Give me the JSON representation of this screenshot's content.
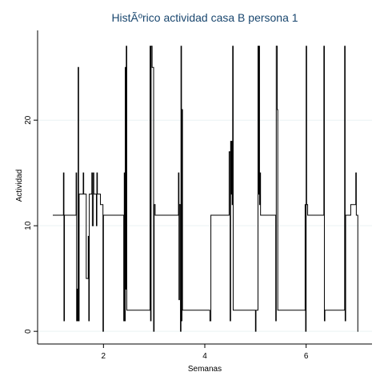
{
  "chart_data": {
    "type": "line",
    "title": "HistÃºrico actividad casa B persona 1",
    "xlabel": "Semanas",
    "ylabel": "Actividad",
    "xlim": [
      0.7,
      7.3
    ],
    "ylim": [
      -1.2,
      28.5
    ],
    "x_ticks": [
      2,
      4,
      6
    ],
    "x_tick_labels": [
      "2",
      "4",
      "6"
    ],
    "y_ticks": [
      0,
      10,
      20
    ],
    "y_tick_labels": [
      "0",
      "10",
      "20"
    ],
    "grid": "horizontal",
    "legend": "none",
    "series": [
      {
        "color": "#000000",
        "points": [
          [
            1.0,
            11
          ],
          [
            1.21,
            11
          ],
          [
            1.21,
            15
          ],
          [
            1.22,
            15
          ],
          [
            1.22,
            1
          ],
          [
            1.23,
            1
          ],
          [
            1.23,
            11
          ],
          [
            1.46,
            11
          ],
          [
            1.46,
            15
          ],
          [
            1.47,
            15
          ],
          [
            1.47,
            1
          ],
          [
            1.48,
            1
          ],
          [
            1.48,
            4
          ],
          [
            1.49,
            4
          ],
          [
            1.49,
            1
          ],
          [
            1.5,
            1
          ],
          [
            1.5,
            25
          ],
          [
            1.51,
            25
          ],
          [
            1.51,
            1
          ],
          [
            1.52,
            1
          ],
          [
            1.52,
            13
          ],
          [
            1.6,
            13
          ],
          [
            1.6,
            15
          ],
          [
            1.61,
            15
          ],
          [
            1.61,
            13
          ],
          [
            1.66,
            13
          ],
          [
            1.66,
            5
          ],
          [
            1.7,
            5
          ],
          [
            1.7,
            9
          ],
          [
            1.71,
            9
          ],
          [
            1.71,
            1
          ],
          [
            1.72,
            1
          ],
          [
            1.72,
            13
          ],
          [
            1.77,
            13
          ],
          [
            1.77,
            15
          ],
          [
            1.78,
            15
          ],
          [
            1.78,
            10
          ],
          [
            1.8,
            10
          ],
          [
            1.8,
            15
          ],
          [
            1.81,
            15
          ],
          [
            1.81,
            13
          ],
          [
            1.86,
            13
          ],
          [
            1.86,
            10
          ],
          [
            1.87,
            10
          ],
          [
            1.87,
            15
          ],
          [
            1.88,
            15
          ],
          [
            1.88,
            13
          ],
          [
            1.94,
            13
          ],
          [
            1.94,
            12
          ],
          [
            1.99,
            12
          ],
          [
            1.99,
            0
          ],
          [
            2.0,
            0
          ],
          [
            2.0,
            11
          ],
          [
            2.4,
            11
          ],
          [
            2.4,
            1
          ],
          [
            2.41,
            1
          ],
          [
            2.41,
            15
          ],
          [
            2.42,
            15
          ],
          [
            2.42,
            1
          ],
          [
            2.43,
            1
          ],
          [
            2.43,
            25
          ],
          [
            2.44,
            25
          ],
          [
            2.44,
            4
          ],
          [
            2.45,
            4
          ],
          [
            2.45,
            27
          ],
          [
            2.46,
            27
          ],
          [
            2.46,
            2
          ],
          [
            2.92,
            2
          ],
          [
            2.92,
            27
          ],
          [
            2.93,
            27
          ],
          [
            2.93,
            1
          ],
          [
            2.94,
            1
          ],
          [
            2.94,
            27
          ],
          [
            2.96,
            27
          ],
          [
            2.96,
            25
          ],
          [
            2.99,
            25
          ],
          [
            2.99,
            0
          ],
          [
            3.0,
            0
          ],
          [
            3.0,
            12
          ],
          [
            3.02,
            12
          ],
          [
            3.02,
            11
          ],
          [
            3.48,
            11
          ],
          [
            3.48,
            15
          ],
          [
            3.49,
            15
          ],
          [
            3.49,
            3
          ],
          [
            3.5,
            3
          ],
          [
            3.5,
            12
          ],
          [
            3.52,
            12
          ],
          [
            3.52,
            0
          ],
          [
            3.53,
            0
          ],
          [
            3.53,
            27
          ],
          [
            3.54,
            27
          ],
          [
            3.54,
            1
          ],
          [
            3.55,
            1
          ],
          [
            3.55,
            21
          ],
          [
            3.56,
            21
          ],
          [
            3.56,
            2
          ],
          [
            4.1,
            2
          ],
          [
            4.1,
            1
          ],
          [
            4.12,
            1
          ],
          [
            4.12,
            11
          ],
          [
            4.48,
            11
          ],
          [
            4.48,
            17
          ],
          [
            4.5,
            17
          ],
          [
            4.5,
            1
          ],
          [
            4.51,
            1
          ],
          [
            4.51,
            18
          ],
          [
            4.52,
            18
          ],
          [
            4.52,
            13
          ],
          [
            4.53,
            13
          ],
          [
            4.53,
            18
          ],
          [
            4.54,
            18
          ],
          [
            4.54,
            12
          ],
          [
            4.55,
            12
          ],
          [
            4.55,
            27
          ],
          [
            4.56,
            27
          ],
          [
            4.56,
            2
          ],
          [
            5.0,
            2
          ],
          [
            5.0,
            0
          ],
          [
            5.01,
            0
          ],
          [
            5.01,
            2
          ],
          [
            5.05,
            2
          ],
          [
            5.05,
            27
          ],
          [
            5.06,
            27
          ],
          [
            5.06,
            13
          ],
          [
            5.07,
            13
          ],
          [
            5.07,
            27
          ],
          [
            5.08,
            27
          ],
          [
            5.08,
            12
          ],
          [
            5.09,
            12
          ],
          [
            5.09,
            15
          ],
          [
            5.1,
            15
          ],
          [
            5.1,
            11
          ],
          [
            5.4,
            11
          ],
          [
            5.4,
            1
          ],
          [
            5.41,
            1
          ],
          [
            5.41,
            27
          ],
          [
            5.43,
            27
          ],
          [
            5.43,
            21
          ],
          [
            5.44,
            21
          ],
          [
            5.44,
            2
          ],
          [
            5.98,
            2
          ],
          [
            5.98,
            12
          ],
          [
            5.99,
            12
          ],
          [
            5.99,
            0
          ],
          [
            6.0,
            0
          ],
          [
            6.0,
            27
          ],
          [
            6.01,
            27
          ],
          [
            6.01,
            12
          ],
          [
            6.03,
            12
          ],
          [
            6.03,
            11
          ],
          [
            6.35,
            11
          ],
          [
            6.35,
            27
          ],
          [
            6.36,
            27
          ],
          [
            6.36,
            1
          ],
          [
            6.37,
            1
          ],
          [
            6.37,
            2
          ],
          [
            6.76,
            2
          ],
          [
            6.76,
            27
          ],
          [
            6.77,
            27
          ],
          [
            6.77,
            1
          ],
          [
            6.78,
            1
          ],
          [
            6.78,
            11
          ],
          [
            6.88,
            11
          ],
          [
            6.88,
            12
          ],
          [
            6.98,
            12
          ],
          [
            6.98,
            15
          ],
          [
            6.99,
            15
          ],
          [
            6.99,
            11
          ],
          [
            7.02,
            11
          ],
          [
            7.02,
            0
          ],
          [
            7.03,
            0
          ]
        ]
      }
    ]
  }
}
